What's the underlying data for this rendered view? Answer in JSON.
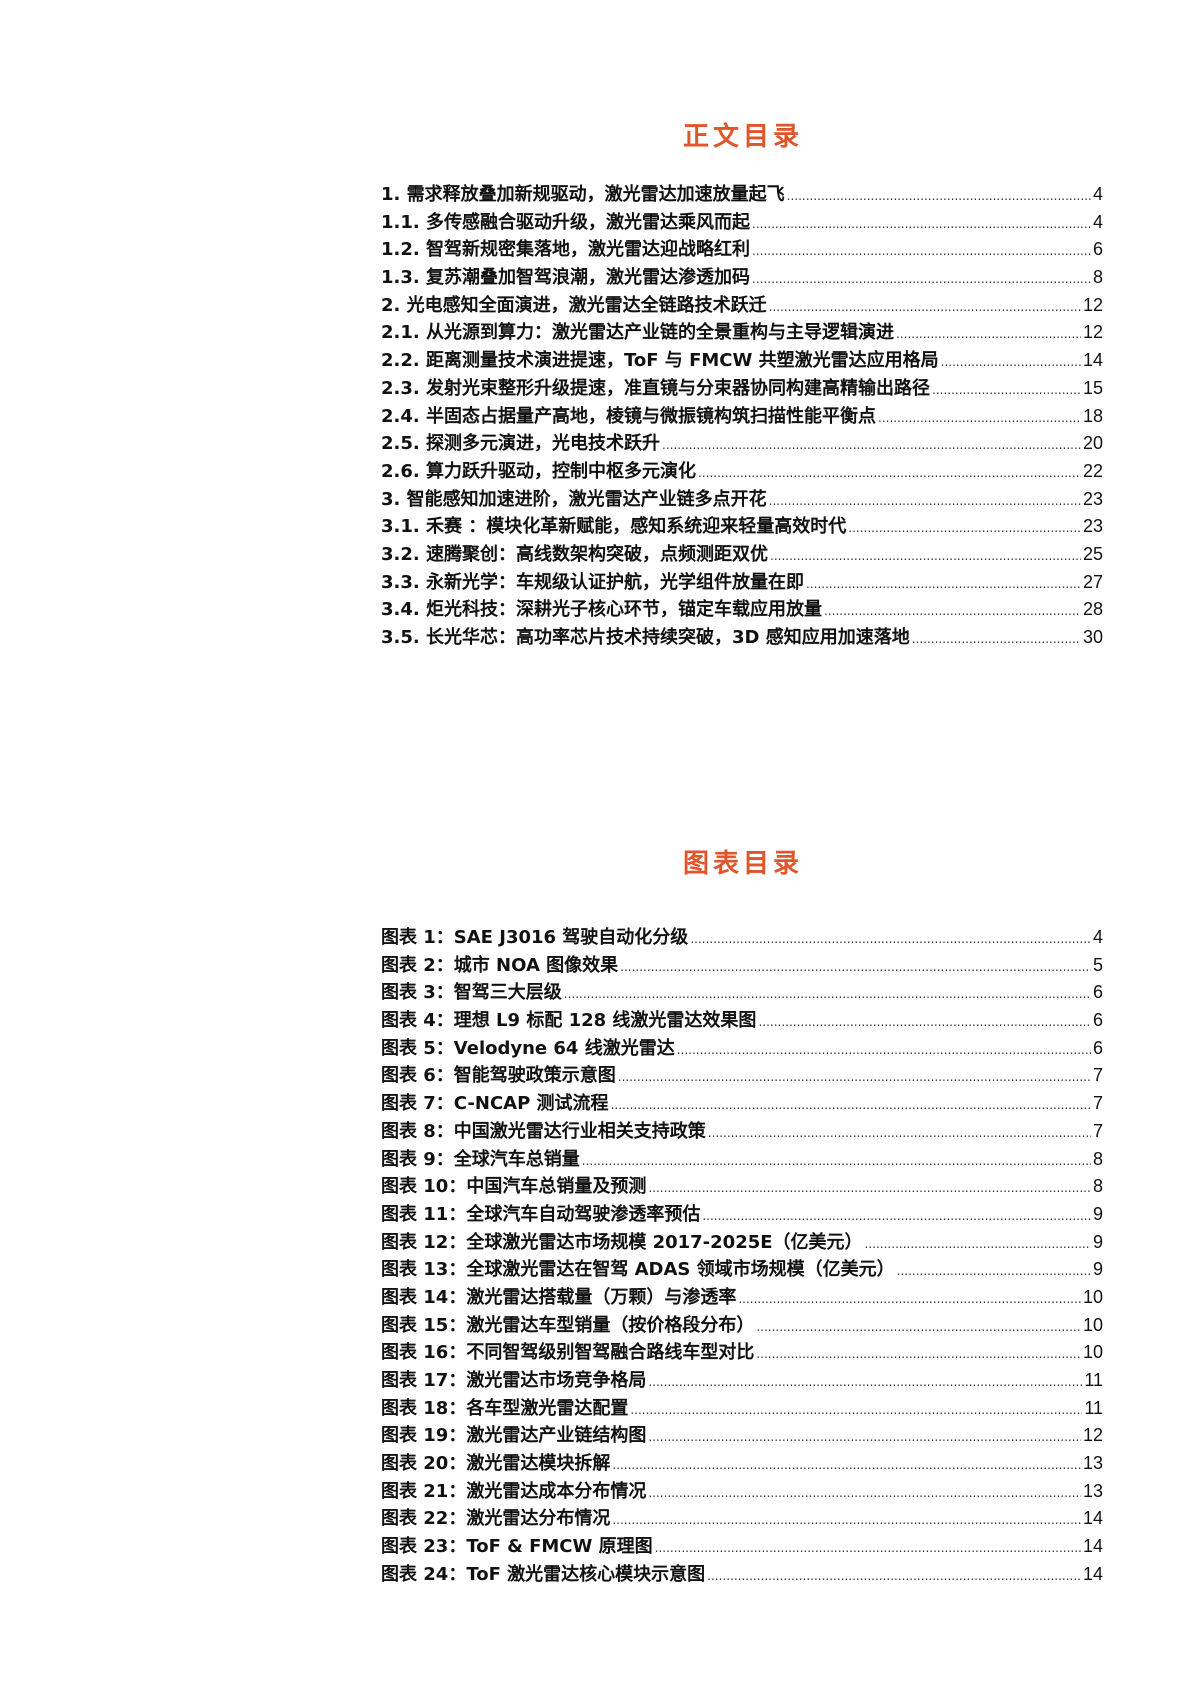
{
  "main_toc": {
    "title": "正文目录",
    "items": [
      {
        "label": "1. 需求释放叠加新规驱动，激光雷达加速放量起飞",
        "page": "4"
      },
      {
        "label": "1.1. 多传感融合驱动升级，激光雷达乘风而起",
        "page": "4"
      },
      {
        "label": "1.2. 智驾新规密集落地，激光雷达迎战略红利",
        "page": "6"
      },
      {
        "label": "1.3. 复苏潮叠加智驾浪潮，激光雷达渗透加码",
        "page": "8"
      },
      {
        "label": "2. 光电感知全面演进，激光雷达全链路技术跃迁",
        "page": "12"
      },
      {
        "label": "2.1. 从光源到算力：激光雷达产业链的全景重构与主导逻辑演进",
        "page": "12"
      },
      {
        "label": "2.2. 距离测量技术演进提速，ToF 与 FMCW 共塑激光雷达应用格局",
        "page": "14"
      },
      {
        "label": "2.3. 发射光束整形升级提速，准直镜与分束器协同构建高精输出路径",
        "page": "15"
      },
      {
        "label": "2.4. 半固态占据量产高地，棱镜与微振镜构筑扫描性能平衡点",
        "page": "18"
      },
      {
        "label": "2.5. 探测多元演进，光电技术跃升",
        "page": "20"
      },
      {
        "label": "2.6. 算力跃升驱动，控制中枢多元演化",
        "page": "22"
      },
      {
        "label": "3. 智能感知加速进阶，激光雷达产业链多点开花",
        "page": "23"
      },
      {
        "label": "3.1. 禾赛 ：模块化革新赋能，感知系统迎来轻量高效时代",
        "page": "23"
      },
      {
        "label": "3.2. 速腾聚创：高线数架构突破，点频测距双优",
        "page": "25"
      },
      {
        "label": "3.3. 永新光学：车规级认证护航，光学组件放量在即",
        "page": "27"
      },
      {
        "label": "3.4. 炬光科技：深耕光子核心环节，锚定车载应用放量",
        "page": "28"
      },
      {
        "label": "3.5. 长光华芯：高功率芯片技术持续突破，3D 感知应用加速落地",
        "page": "30"
      }
    ]
  },
  "figure_toc": {
    "title": "图表目录",
    "items": [
      {
        "label": "图表 1：SAE J3016 驾驶自动化分级",
        "page": "4"
      },
      {
        "label": "图表 2：城市 NOA 图像效果",
        "page": "5"
      },
      {
        "label": "图表 3：智驾三大层级",
        "page": "6"
      },
      {
        "label": "图表 4：理想 L9 标配 128 线激光雷达效果图",
        "page": "6"
      },
      {
        "label": "图表 5：Velodyne 64 线激光雷达",
        "page": "6"
      },
      {
        "label": "图表 6：智能驾驶政策示意图",
        "page": "7"
      },
      {
        "label": "图表 7：C-NCAP 测试流程",
        "page": "7"
      },
      {
        "label": "图表 8：中国激光雷达行业相关支持政策",
        "page": "7"
      },
      {
        "label": "图表 9：全球汽车总销量",
        "page": "8"
      },
      {
        "label": "图表 10：中国汽车总销量及预测",
        "page": "8"
      },
      {
        "label": "图表 11：全球汽车自动驾驶渗透率预估",
        "page": "9"
      },
      {
        "label": "图表 12：全球激光雷达市场规模 2017-2025E（亿美元）",
        "page": "9"
      },
      {
        "label": "图表 13：全球激光雷达在智驾 ADAS 领域市场规模（亿美元）",
        "page": "9"
      },
      {
        "label": "图表 14：激光雷达搭载量（万颗）与渗透率",
        "page": "10"
      },
      {
        "label": "图表 15：激光雷达车型销量（按价格段分布）",
        "page": "10"
      },
      {
        "label": "图表 16：不同智驾级别智驾融合路线车型对比",
        "page": "10"
      },
      {
        "label": "图表 17：激光雷达市场竞争格局",
        "page": "11"
      },
      {
        "label": "图表 18：各车型激光雷达配置",
        "page": "11"
      },
      {
        "label": "图表 19：激光雷达产业链结构图",
        "page": "12"
      },
      {
        "label": "图表 20：激光雷达模块拆解",
        "page": "13"
      },
      {
        "label": "图表 21：激光雷达成本分布情况",
        "page": "13"
      },
      {
        "label": "图表 22：激光雷达分布情况",
        "page": "14"
      },
      {
        "label": "图表 23：ToF & FMCW 原理图",
        "page": "14"
      },
      {
        "label": "图表 24：ToF 激光雷达核心模块示意图",
        "page": "14"
      }
    ]
  },
  "colors": {
    "heading": "#e0552a",
    "text": "#111111"
  }
}
